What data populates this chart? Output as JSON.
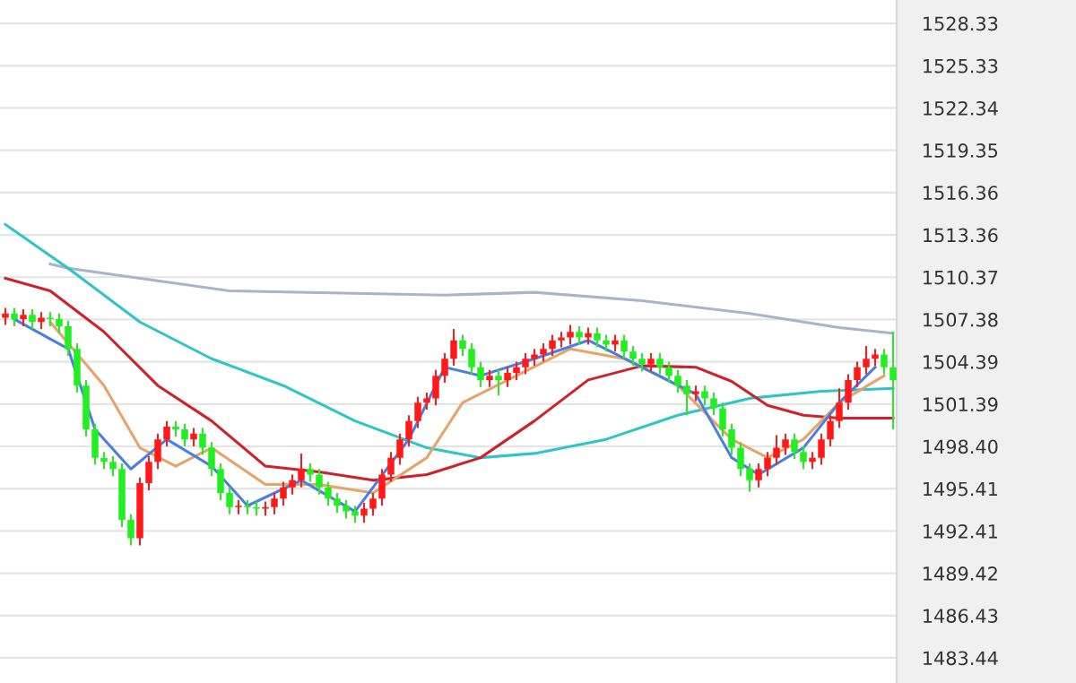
{
  "chart_data": {
    "type": "candlestick",
    "categories": [
      null,
      null,
      null,
      null,
      null,
      null,
      null,
      null,
      null,
      null,
      null,
      null,
      null,
      null,
      null,
      null,
      null,
      null,
      null,
      null,
      null,
      null,
      null,
      null,
      null,
      null,
      null,
      null,
      null,
      null,
      null,
      null,
      null,
      null,
      null,
      null,
      null,
      null,
      null,
      null,
      null,
      null,
      null,
      null,
      null,
      null,
      null,
      null,
      null,
      null,
      null,
      null,
      null,
      null,
      null,
      null,
      null,
      null,
      null,
      null,
      null,
      null,
      null,
      null,
      null,
      null,
      null,
      null,
      null,
      null,
      null,
      null,
      null,
      null,
      null,
      null,
      null,
      null,
      null,
      null,
      null,
      null,
      null,
      null,
      null,
      null,
      null,
      null,
      null,
      null,
      null,
      null,
      null,
      null,
      null,
      null,
      null,
      null,
      null,
      null
    ],
    "colors": [
      "#ff1a1a",
      "#22ee22",
      "#ff1a1a",
      "#22ee22",
      "#ff1a1a",
      "#22ee22",
      "#22ee22",
      "#22ee22",
      "#22ee22",
      "#22ee22",
      "#22ee22",
      "#22ee22",
      "#22ee22",
      "#22ee22",
      "#22ee22",
      "#ff1a1a",
      "#ff1a1a",
      "#ff1a1a",
      "#ff1a1a",
      "#22ee22",
      "#22ee22",
      "#ff1a1a",
      "#22ee22",
      "#22ee22",
      "#22ee22",
      "#22ee22",
      "#ff1a1a",
      "#22ee22",
      "#22ee22",
      "#ff1a1a",
      "#ff1a1a",
      "#ff1a1a",
      "#ff1a1a",
      "#ff1a1a",
      "#22ee22",
      "#22ee22",
      "#22ee22",
      "#22ee22",
      "#22ee22",
      "#22ee22",
      "#ff1a1a",
      "#ff1a1a",
      "#ff1a1a",
      "#ff1a1a",
      "#ff1a1a",
      "#ff1a1a",
      "#ff1a1a",
      "#ff1a1a",
      "#ff1a1a",
      "#ff1a1a",
      "#ff1a1a",
      "#22ee22",
      "#22ee22",
      "#22ee22",
      "#ff1a1a",
      "#22ee22",
      "#ff1a1a",
      "#ff1a1a",
      "#ff1a1a",
      "#ff1a1a",
      "#ff1a1a",
      "#ff1a1a",
      "#ff1a1a",
      "#ff1a1a",
      "#22ee22",
      "#ff1a1a",
      "#22ee22",
      "#22ee22",
      "#ff1a1a",
      "#22ee22",
      "#22ee22",
      "#22ee22",
      "#ff1a1a",
      "#22ee22",
      "#22ee22",
      "#22ee22",
      "#22ee22",
      "#ff1a1a",
      "#22ee22",
      "#22ee22",
      "#22ee22",
      "#22ee22",
      "#22ee22",
      "#22ee22",
      "#ff1a1a",
      "#ff1a1a",
      "#ff1a1a",
      "#ff1a1a",
      "#22ee22",
      "#22ee22",
      "#ff1a1a",
      "#ff1a1a",
      "#ff1a1a",
      "#ff1a1a",
      "#ff1a1a",
      "#ff1a1a",
      "#ff1a1a",
      "#ff1a1a",
      "#22ee22",
      "#22ee22"
    ],
    "ohlc": [
      [
        1507.5,
        1508.2,
        1507.0,
        1507.8
      ],
      [
        1507.8,
        1508.2,
        1506.9,
        1507.4
      ],
      [
        1507.4,
        1508.1,
        1506.9,
        1507.7
      ],
      [
        1507.7,
        1508.1,
        1506.7,
        1507.2
      ],
      [
        1507.2,
        1507.9,
        1506.7,
        1507.5
      ],
      [
        1507.5,
        1507.9,
        1506.9,
        1507.4
      ],
      [
        1507.4,
        1507.8,
        1506.4,
        1506.9
      ],
      [
        1506.9,
        1507.3,
        1504.8,
        1505.3
      ],
      [
        1505.3,
        1505.7,
        1502.2,
        1502.7
      ],
      [
        1502.7,
        1503.1,
        1499.1,
        1499.6
      ],
      [
        1499.6,
        1500.0,
        1497.1,
        1497.6
      ],
      [
        1497.6,
        1498.0,
        1496.8,
        1497.3
      ],
      [
        1497.3,
        1497.7,
        1496.3,
        1496.8
      ],
      [
        1496.8,
        1497.2,
        1492.7,
        1493.2
      ],
      [
        1493.2,
        1493.6,
        1491.4,
        1491.9
      ],
      [
        1491.9,
        1496.2,
        1491.4,
        1495.8
      ],
      [
        1495.8,
        1497.7,
        1495.3,
        1497.3
      ],
      [
        1497.3,
        1499.3,
        1496.8,
        1498.9
      ],
      [
        1498.9,
        1500.2,
        1498.4,
        1499.8
      ],
      [
        1499.8,
        1500.2,
        1499.1,
        1499.6
      ],
      [
        1499.6,
        1500.0,
        1498.4,
        1498.9
      ],
      [
        1498.9,
        1499.7,
        1498.4,
        1499.3
      ],
      [
        1499.3,
        1499.7,
        1497.8,
        1498.3
      ],
      [
        1498.3,
        1498.7,
        1496.3,
        1496.8
      ],
      [
        1496.8,
        1497.2,
        1494.6,
        1495.1
      ],
      [
        1495.1,
        1495.5,
        1493.6,
        1494.1
      ],
      [
        1494.1,
        1494.6,
        1493.6,
        1494.2
      ],
      [
        1494.2,
        1494.6,
        1493.6,
        1494.1
      ],
      [
        1494.1,
        1494.5,
        1493.5,
        1494.0
      ],
      [
        1494.0,
        1494.5,
        1493.5,
        1494.1
      ],
      [
        1494.1,
        1495.1,
        1493.6,
        1494.7
      ],
      [
        1494.7,
        1495.9,
        1494.2,
        1495.5
      ],
      [
        1495.5,
        1496.4,
        1495.0,
        1496.0
      ],
      [
        1496.0,
        1497.9,
        1495.5,
        1496.8
      ],
      [
        1496.8,
        1497.2,
        1495.9,
        1496.4
      ],
      [
        1496.4,
        1496.8,
        1495.0,
        1495.5
      ],
      [
        1495.5,
        1495.9,
        1494.2,
        1494.7
      ],
      [
        1494.7,
        1495.1,
        1493.7,
        1494.2
      ],
      [
        1494.2,
        1494.6,
        1493.3,
        1493.8
      ],
      [
        1493.8,
        1494.2,
        1493.0,
        1493.5
      ],
      [
        1493.5,
        1494.4,
        1493.0,
        1494.0
      ],
      [
        1494.0,
        1495.1,
        1493.5,
        1494.7
      ],
      [
        1494.7,
        1496.8,
        1494.2,
        1496.4
      ],
      [
        1496.4,
        1498.0,
        1495.9,
        1497.6
      ],
      [
        1497.6,
        1499.3,
        1497.1,
        1498.9
      ],
      [
        1498.9,
        1500.6,
        1498.4,
        1500.2
      ],
      [
        1500.2,
        1501.9,
        1499.7,
        1501.5
      ],
      [
        1501.5,
        1502.2,
        1501.0,
        1501.8
      ],
      [
        1501.8,
        1503.8,
        1501.3,
        1503.4
      ],
      [
        1503.4,
        1505.0,
        1502.9,
        1504.6
      ],
      [
        1504.6,
        1506.7,
        1504.1,
        1505.9
      ],
      [
        1505.9,
        1506.3,
        1504.8,
        1505.3
      ],
      [
        1505.3,
        1505.7,
        1503.5,
        1504.0
      ],
      [
        1504.0,
        1504.4,
        1502.6,
        1503.1
      ],
      [
        1503.1,
        1503.8,
        1502.6,
        1503.4
      ],
      [
        1503.4,
        1503.8,
        1502.0,
        1503.1
      ],
      [
        1503.1,
        1504.0,
        1502.6,
        1503.6
      ],
      [
        1503.6,
        1504.4,
        1503.1,
        1504.0
      ],
      [
        1504.0,
        1505.0,
        1503.5,
        1504.6
      ],
      [
        1504.6,
        1505.3,
        1504.1,
        1504.9
      ],
      [
        1504.9,
        1505.7,
        1504.4,
        1505.3
      ],
      [
        1505.3,
        1506.3,
        1504.8,
        1505.9
      ],
      [
        1505.9,
        1506.5,
        1505.4,
        1506.1
      ],
      [
        1506.1,
        1507.0,
        1505.6,
        1506.5
      ],
      [
        1506.5,
        1506.9,
        1505.6,
        1506.1
      ],
      [
        1506.1,
        1506.8,
        1505.6,
        1506.4
      ],
      [
        1506.4,
        1506.8,
        1505.4,
        1505.9
      ],
      [
        1505.9,
        1506.3,
        1505.1,
        1505.6
      ],
      [
        1505.6,
        1506.3,
        1505.1,
        1505.9
      ],
      [
        1505.9,
        1506.3,
        1504.6,
        1505.1
      ],
      [
        1505.1,
        1505.5,
        1504.1,
        1504.6
      ],
      [
        1504.6,
        1505.0,
        1503.7,
        1504.2
      ],
      [
        1504.2,
        1505.0,
        1503.7,
        1504.6
      ],
      [
        1504.6,
        1505.0,
        1503.5,
        1504.0
      ],
      [
        1504.0,
        1504.4,
        1502.9,
        1503.4
      ],
      [
        1503.4,
        1503.8,
        1502.2,
        1502.7
      ],
      [
        1502.7,
        1503.1,
        1500.6,
        1502.1
      ],
      [
        1502.1,
        1502.7,
        1501.6,
        1502.3
      ],
      [
        1502.3,
        1502.7,
        1501.3,
        1501.8
      ],
      [
        1501.8,
        1502.2,
        1500.6,
        1501.1
      ],
      [
        1501.1,
        1501.5,
        1499.1,
        1499.6
      ],
      [
        1499.6,
        1500.0,
        1497.8,
        1498.3
      ],
      [
        1498.3,
        1498.7,
        1496.3,
        1496.8
      ],
      [
        1496.8,
        1497.2,
        1495.2,
        1496.0
      ],
      [
        1496.0,
        1497.2,
        1495.5,
        1496.8
      ],
      [
        1496.8,
        1498.0,
        1496.3,
        1497.6
      ],
      [
        1497.6,
        1499.2,
        1497.1,
        1498.3
      ],
      [
        1498.3,
        1499.3,
        1497.8,
        1498.9
      ],
      [
        1498.9,
        1499.3,
        1497.5,
        1498.0
      ],
      [
        1498.0,
        1498.4,
        1496.8,
        1497.3
      ],
      [
        1497.3,
        1498.0,
        1496.8,
        1497.6
      ],
      [
        1497.6,
        1499.3,
        1497.1,
        1498.9
      ],
      [
        1498.9,
        1500.6,
        1498.4,
        1500.2
      ],
      [
        1500.2,
        1502.5,
        1499.7,
        1501.5
      ],
      [
        1501.5,
        1503.5,
        1501.0,
        1503.1
      ],
      [
        1503.1,
        1504.4,
        1502.6,
        1504.0
      ],
      [
        1504.0,
        1505.5,
        1503.5,
        1504.6
      ],
      [
        1504.6,
        1505.3,
        1504.1,
        1504.9
      ],
      [
        1504.9,
        1505.3,
        1503.5,
        1504.0
      ],
      [
        1504.0,
        1506.5,
        1499.6,
        1503.1
      ]
    ],
    "series": [
      {
        "type": "line",
        "color": "#a8b4c8",
        "values": [
          null,
          null,
          null,
          null,
          null,
          1511.3,
          null,
          1511.0,
          null,
          null,
          null,
          null,
          null,
          null,
          null,
          null,
          null,
          null,
          null,
          null,
          null,
          null,
          null,
          null,
          null,
          1509.4,
          null,
          null,
          null,
          null,
          null,
          null,
          null,
          null,
          null,
          null,
          null,
          null,
          null,
          null,
          null,
          null,
          null,
          null,
          null,
          null,
          null,
          null,
          null,
          1509.1,
          null,
          null,
          null,
          null,
          null,
          null,
          null,
          null,
          null,
          1509.3,
          null,
          null,
          null,
          null,
          null,
          null,
          null,
          null,
          null,
          null,
          null,
          1508.7,
          null,
          null,
          null,
          null,
          null,
          null,
          null,
          null,
          null,
          null,
          null,
          1507.8,
          null,
          null,
          null,
          null,
          null,
          null,
          null,
          null,
          null,
          1506.8,
          null,
          null,
          null,
          null,
          null,
          1506.4
        ]
      },
      {
        "type": "line",
        "color": "#2ec4c8",
        "values": [
          1514.1,
          null,
          null,
          null,
          null,
          null,
          null,
          1511.0,
          null,
          null,
          null,
          null,
          null,
          null,
          null,
          1507.2,
          null,
          null,
          null,
          null,
          null,
          null,
          null,
          1504.6,
          null,
          null,
          null,
          null,
          null,
          null,
          null,
          1502.7,
          null,
          null,
          null,
          null,
          null,
          null,
          null,
          1500.2,
          null,
          null,
          null,
          null,
          null,
          null,
          null,
          1498.3,
          null,
          null,
          null,
          null,
          null,
          1497.6,
          null,
          null,
          null,
          null,
          null,
          1497.9,
          null,
          null,
          null,
          null,
          null,
          null,
          null,
          1498.9,
          null,
          null,
          null,
          null,
          null,
          null,
          null,
          1500.6,
          null,
          null,
          null,
          null,
          null,
          null,
          null,
          1501.8,
          null,
          null,
          null,
          null,
          null,
          null,
          null,
          1502.3,
          null,
          null,
          null,
          null,
          null,
          null,
          null,
          1502.5
        ]
      },
      {
        "type": "line",
        "color": "#d0202a",
        "values": [
          1510.3,
          null,
          null,
          null,
          null,
          1509.4,
          null,
          null,
          null,
          null,
          null,
          1506.5,
          null,
          null,
          null,
          null,
          null,
          1502.7,
          null,
          null,
          null,
          null,
          null,
          1500.2,
          null,
          null,
          null,
          null,
          null,
          1497.0,
          null,
          null,
          null,
          null,
          null,
          1496.6,
          null,
          null,
          null,
          null,
          null,
          1496.0,
          null,
          null,
          null,
          null,
          null,
          1496.4,
          null,
          null,
          null,
          null,
          null,
          1497.6,
          null,
          null,
          null,
          null,
          null,
          1500.2,
          null,
          null,
          null,
          null,
          null,
          1503.1,
          null,
          null,
          null,
          null,
          null,
          1504.1,
          null,
          null,
          null,
          null,
          null,
          1504.0,
          null,
          null,
          null,
          1503.0,
          null,
          null,
          null,
          1501.3,
          null,
          null,
          null,
          1500.6,
          null,
          null,
          null,
          1500.4,
          null,
          null,
          null,
          null,
          null,
          1500.4
        ]
      },
      {
        "type": "line",
        "color": "#e8a36a",
        "values": [
          null,
          null,
          null,
          null,
          null,
          1507.2,
          null,
          null,
          null,
          null,
          null,
          1502.7,
          null,
          null,
          null,
          1498.3,
          null,
          null,
          null,
          1497.0,
          null,
          null,
          null,
          1498.3,
          null,
          null,
          null,
          null,
          null,
          1495.7,
          null,
          null,
          null,
          null,
          null,
          1495.7,
          null,
          null,
          null,
          null,
          null,
          1495.1,
          null,
          null,
          null,
          null,
          null,
          1497.6,
          null,
          null,
          null,
          1501.5,
          null,
          null,
          null,
          null,
          null,
          1503.4,
          null,
          null,
          null,
          null,
          null,
          1505.3,
          null,
          null,
          null,
          null,
          null,
          1504.6,
          null,
          null,
          null,
          null,
          null,
          1502.7,
          null,
          null,
          null,
          null,
          null,
          1498.9,
          null,
          null,
          null,
          1497.6,
          null,
          null,
          null,
          1498.9,
          null,
          null,
          null,
          1501.5,
          null,
          null,
          null,
          null,
          1503.4,
          null
        ]
      },
      {
        "type": "line",
        "color": "#4a7fe0",
        "values": [
          null,
          1507.4,
          null,
          null,
          null,
          null,
          null,
          1505.3,
          null,
          null,
          1499.6,
          null,
          null,
          null,
          1496.8,
          null,
          null,
          null,
          1498.9,
          null,
          null,
          null,
          null,
          1497.0,
          null,
          null,
          null,
          1494.2,
          null,
          null,
          null,
          null,
          null,
          1496.0,
          null,
          null,
          null,
          null,
          null,
          1493.8,
          null,
          null,
          null,
          null,
          null,
          1498.9,
          null,
          null,
          null,
          1504.0,
          null,
          null,
          null,
          1503.4,
          null,
          null,
          null,
          null,
          null,
          1504.6,
          null,
          null,
          null,
          null,
          null,
          1505.9,
          null,
          null,
          null,
          null,
          null,
          1504.0,
          null,
          null,
          null,
          null,
          null,
          1502.1,
          null,
          null,
          null,
          1497.6,
          null,
          null,
          1496.4,
          null,
          null,
          null,
          null,
          1498.3,
          null,
          null,
          null,
          1501.5,
          null,
          null,
          null,
          1504.0,
          null,
          null
        ]
      }
    ],
    "ylim": [
      1481.66,
      1529.98
    ],
    "yticks": [
      {
        "value": 1528.33,
        "label": "1528.33"
      },
      {
        "value": 1525.33,
        "label": "1525.33"
      },
      {
        "value": 1522.34,
        "label": "1522.34"
      },
      {
        "value": 1519.35,
        "label": "1519.35"
      },
      {
        "value": 1516.36,
        "label": "1516.36"
      },
      {
        "value": 1513.36,
        "label": "1513.36"
      },
      {
        "value": 1510.37,
        "label": "1510.37"
      },
      {
        "value": 1507.38,
        "label": "1507.38"
      },
      {
        "value": 1504.39,
        "label": "1504.39"
      },
      {
        "value": 1501.39,
        "label": "1501.39"
      },
      {
        "value": 1498.4,
        "label": "1498.40"
      },
      {
        "value": 1495.41,
        "label": "1495.41"
      },
      {
        "value": 1492.41,
        "label": "1492.41"
      },
      {
        "value": 1489.42,
        "label": "1489.42"
      },
      {
        "value": 1486.43,
        "label": "1486.43"
      },
      {
        "value": 1483.44,
        "label": "1483.44"
      }
    ],
    "grid": "y",
    "tick_labels": "y",
    "legend": false
  }
}
